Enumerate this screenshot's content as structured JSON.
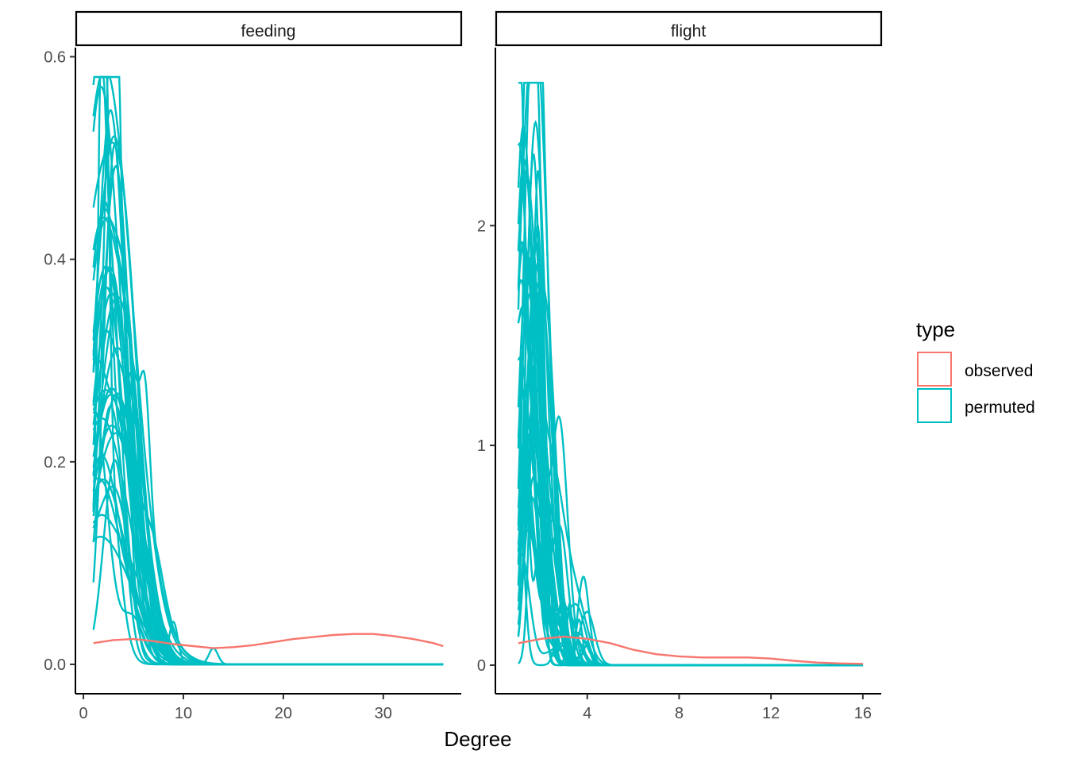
{
  "chart_data": {
    "type": "line",
    "chart_kind": "faceted density lines",
    "xlabel": "Degree",
    "ylabel": "",
    "grid": false,
    "legend": {
      "title": "type",
      "placement": "right",
      "entries": [
        {
          "label": "observed",
          "color": "#F8766D"
        },
        {
          "label": "permuted",
          "color": "#00BFC4"
        }
      ]
    },
    "panels": [
      {
        "label": "feeding",
        "xlim": [
          -0.8,
          37.8
        ],
        "ylim": [
          -0.029,
          0.609
        ],
        "x_ticks": [
          0,
          10,
          20,
          30
        ],
        "y_ticks": [
          {
            "value": 0.0,
            "label": "0.0"
          },
          {
            "value": 0.2,
            "label": "0.2"
          },
          {
            "value": 0.4,
            "label": "0.4"
          },
          {
            "value": 0.6,
            "label": "0.6"
          }
        ],
        "observed": {
          "x": [
            1,
            3,
            5,
            7,
            9,
            11,
            13,
            15,
            17,
            19,
            21,
            23,
            25,
            27,
            29,
            31,
            33,
            35,
            36
          ],
          "y": [
            0.021,
            0.024,
            0.025,
            0.023,
            0.02,
            0.018,
            0.016,
            0.017,
            0.019,
            0.022,
            0.025,
            0.027,
            0.029,
            0.03,
            0.03,
            0.028,
            0.025,
            0.021,
            0.018
          ]
        },
        "permuted": {
          "x_range": [
            1,
            36
          ],
          "count": 40,
          "start_y_range": [
            0.12,
            0.56
          ],
          "peak_y_max": 0.58,
          "notable_peaks": [
            {
              "x": 2.0,
              "y": 0.58
            },
            {
              "x": 3.0,
              "y": 0.46
            },
            {
              "x": 6.2,
              "y": 0.09
            },
            {
              "x": 9.0,
              "y": 0.042
            },
            {
              "x": 13.0,
              "y": 0.016
            }
          ],
          "tail_value": 0.0
        }
      },
      {
        "label": "flight",
        "xlim": [
          0.0,
          16.8
        ],
        "ylim": [
          -0.13,
          2.81
        ],
        "x_ticks": [
          4,
          8,
          12,
          16
        ],
        "y_ticks": [
          {
            "value": 0,
            "label": "0"
          },
          {
            "value": 1,
            "label": "1"
          },
          {
            "value": 2,
            "label": "2"
          }
        ],
        "observed": {
          "x": [
            1,
            2,
            3,
            4,
            5,
            6,
            7,
            8,
            9,
            10,
            11,
            12,
            13,
            14,
            15,
            16
          ],
          "y": [
            0.1,
            0.12,
            0.13,
            0.12,
            0.1,
            0.07,
            0.05,
            0.04,
            0.035,
            0.035,
            0.035,
            0.03,
            0.02,
            0.012,
            0.008,
            0.006
          ]
        },
        "permuted": {
          "x_range": [
            1,
            16
          ],
          "count": 40,
          "start_y_range": [
            0.4,
            2.65
          ],
          "peak_y_max": 2.65,
          "notable_peaks": [
            {
              "x": 1.0,
              "y": 2.65
            },
            {
              "x": 1.9,
              "y": 0.89
            },
            {
              "x": 2.95,
              "y": 0.25
            },
            {
              "x": 4.0,
              "y": 0.09
            }
          ],
          "tail_value": 0.0
        }
      }
    ]
  }
}
